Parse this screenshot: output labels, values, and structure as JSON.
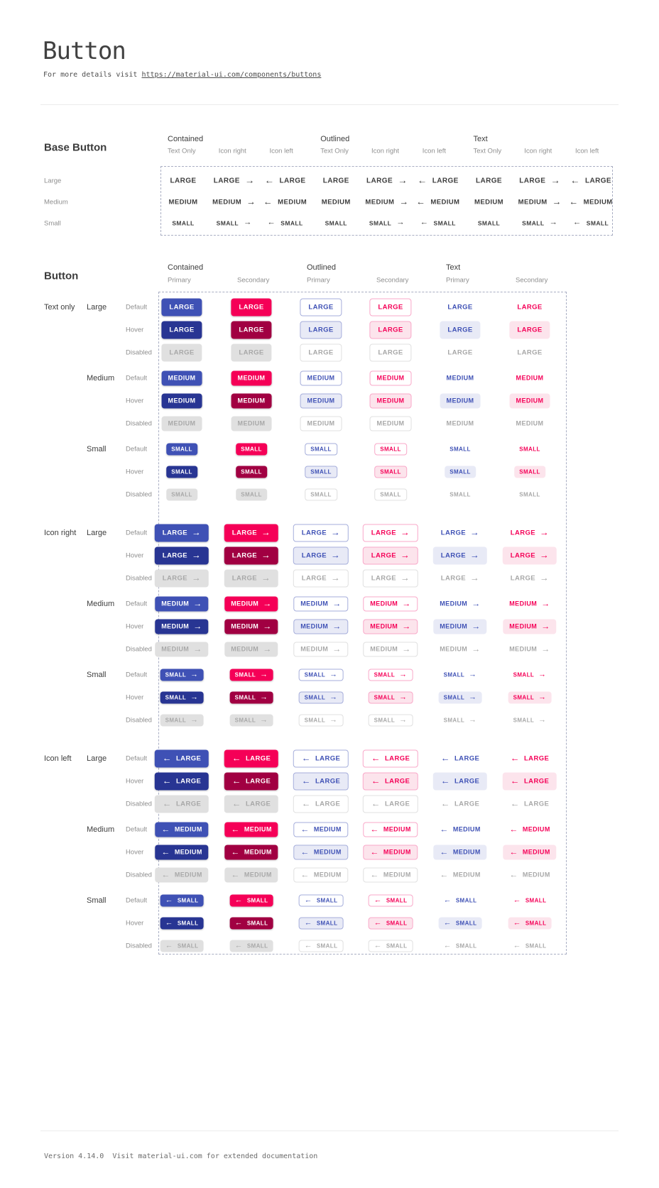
{
  "header": {
    "title": "Button",
    "subtitle_prefix": "For more details visit ",
    "subtitle_link": "https://material-ui.com/components/buttons"
  },
  "base_section": {
    "heading": "Base Button",
    "groups": [
      {
        "label": "Contained",
        "sub_columns": [
          "Text Only",
          "Icon right",
          "Icon left"
        ]
      },
      {
        "label": "Outlined",
        "sub_columns": [
          "Text Only",
          "Icon right",
          "Icon left"
        ]
      },
      {
        "label": "Text",
        "sub_columns": [
          "Text Only",
          "Icon right",
          "Icon left"
        ]
      }
    ],
    "icon_variants": [
      "none",
      "right",
      "left"
    ],
    "rows": [
      {
        "label": "Large",
        "button_text": "LARGE"
      },
      {
        "label": "Medium",
        "button_text": "MEDIUM"
      },
      {
        "label": "Small",
        "button_text": "SMALL"
      }
    ]
  },
  "button_section": {
    "heading": "Button",
    "groups": [
      {
        "label": "Contained",
        "sub_columns": [
          "Primary",
          "Secondary"
        ]
      },
      {
        "label": "Outlined",
        "sub_columns": [
          "Primary",
          "Secondary"
        ]
      },
      {
        "label": "Text",
        "sub_columns": [
          "Primary",
          "Secondary"
        ]
      }
    ],
    "column_variants": [
      {
        "variant": "contained",
        "color": "primary"
      },
      {
        "variant": "contained",
        "color": "secondary"
      },
      {
        "variant": "outlined",
        "color": "primary"
      },
      {
        "variant": "outlined",
        "color": "secondary"
      },
      {
        "variant": "text",
        "color": "primary"
      },
      {
        "variant": "text",
        "color": "secondary"
      }
    ],
    "row_groups": [
      {
        "label": "Text only",
        "icon": "none"
      },
      {
        "label": "Icon right",
        "icon": "right"
      },
      {
        "label": "Icon left",
        "icon": "left"
      }
    ],
    "sizes": [
      {
        "label": "Large",
        "button_text": "LARGE"
      },
      {
        "label": "Medium",
        "button_text": "MEDIUM"
      },
      {
        "label": "Small",
        "button_text": "SMALL"
      }
    ],
    "states": [
      {
        "label": "Default",
        "key": "default"
      },
      {
        "label": "Hover",
        "key": "hover"
      },
      {
        "label": "Disabled",
        "key": "disabled"
      }
    ]
  },
  "icons": {
    "arrow_right": "→",
    "arrow_left": "←"
  },
  "colors": {
    "primary": "#3f51b5",
    "primary_hover": "#283593",
    "primary_tint": "#e8eaf6",
    "secondary": "#f50057",
    "secondary_hover": "#a10042",
    "secondary_tint": "#fce4ec",
    "disabled_bg": "#e0e0e0",
    "disabled_text": "#a8a8a8",
    "outlined_primary_border": "#a6aedb",
    "outlined_secondary_border": "#f9a8c9",
    "outlined_disabled_border": "#e0e0e0",
    "dashed_border": "#a9aec3",
    "base_button_text": "#3d3d3d",
    "text_dark": "#3d3d3d",
    "text_muted": "#8f8f8f",
    "divider": "#ececec"
  },
  "footer": {
    "text": "Version 4.14.0  Visit material-ui.com for extended documentation"
  }
}
